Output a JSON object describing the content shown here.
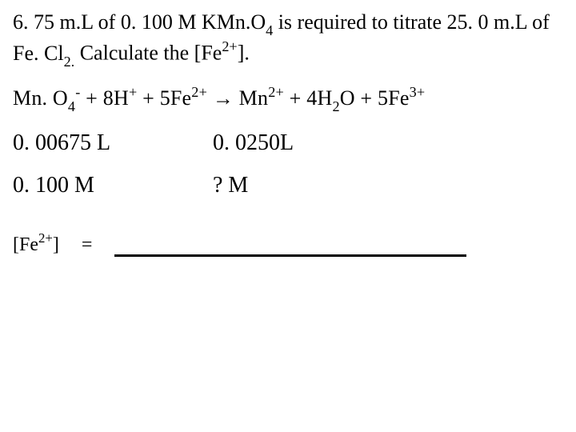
{
  "problem": {
    "vol_kmno4": "6. 75 m.L",
    "conc_kmno4": "0. 100 M",
    "reagent_kmno4_pre": "KMn.O",
    "reagent_kmno4_sub": "4",
    "verb": " is required to titrate ",
    "vol_fecl2": "25. 0 m.L",
    "reagent_fecl2_pre": "Fe. Cl",
    "reagent_fecl2_sub": "2.",
    "tail": " Calculate the [Fe",
    "tail_sup": "2+",
    "tail_end": "]."
  },
  "equation": {
    "mno4_pre": "Mn. O",
    "mno4_sub": "4",
    "mno4_sup": "-",
    "plus1": "   +   ",
    "h_coeff": "8H",
    "h_sup": "+",
    "plus2": "  +  ",
    "fe2_coeff": "5Fe",
    "fe2_sup": "2+",
    "arrow": "    →   ",
    "mn_pre": "Mn",
    "mn_sup": "2+",
    "plus3": "  +  ",
    "h2o_coeff": "4H",
    "h2o_sub1": "2",
    "h2o_o": "O",
    "plus4": "    +    ",
    "fe3_coeff": "5Fe",
    "fe3_sup": "3+"
  },
  "data": {
    "row1": {
      "col1": "0. 00675 L",
      "col2": "0. 0250L"
    },
    "row2": {
      "col1": "0. 100 M",
      "col2": "? M"
    }
  },
  "answer": {
    "label_pre": "[Fe",
    "label_sup": "2+",
    "label_post": "]",
    "equals": "="
  }
}
